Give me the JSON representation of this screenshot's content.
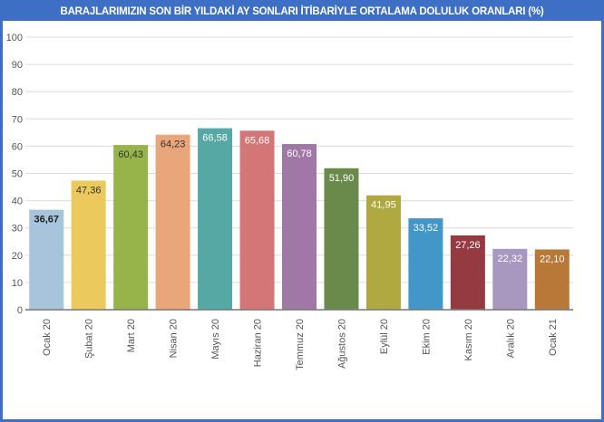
{
  "chart_data": {
    "type": "bar",
    "title": "BARAJLARIMIZIN SON BİR YILDAKİ AY SONLARI İTİBARİYLE ORTALAMA DOLULUK ORANLARI (%)",
    "xlabel": "",
    "ylabel": "",
    "ylim": [
      0,
      100
    ],
    "yticks": [
      0,
      10,
      20,
      30,
      40,
      50,
      60,
      70,
      80,
      90,
      100
    ],
    "grid": true,
    "categories": [
      "Ocak 20",
      "Şubat 20",
      "Mart 20",
      "Nisan 20",
      "Mayıs 20",
      "Haziran 20",
      "Temmuz 20",
      "Ağustos 20",
      "Eylül 20",
      "Ekim 20",
      "Kasım 20",
      "Aralık 20",
      "Ocak 21"
    ],
    "values": [
      36.67,
      47.36,
      60.43,
      64.23,
      66.58,
      65.68,
      60.78,
      51.9,
      41.95,
      33.52,
      27.26,
      22.32,
      22.1
    ],
    "data_labels": [
      "36,67",
      "47,36",
      "60,43",
      "64,23",
      "66,58",
      "65,68",
      "60,78",
      "51,90",
      "41,95",
      "33,52",
      "27,26",
      "22,32",
      "22,10"
    ],
    "colors": [
      "#a8c4dc",
      "#ecc95c",
      "#96b44a",
      "#e8a67a",
      "#56a8a4",
      "#d27677",
      "#a078a6",
      "#6a8a4c",
      "#b0a840",
      "#4296c8",
      "#963a42",
      "#a898c0",
      "#b87838"
    ],
    "label_colors": [
      "#222222",
      "#333333",
      "#333333",
      "#333333",
      "#ffffff",
      "#ffffff",
      "#ffffff",
      "#ffffff",
      "#ffffff",
      "#ffffff",
      "#ffffff",
      "#ffffff",
      "#ffffff"
    ]
  }
}
